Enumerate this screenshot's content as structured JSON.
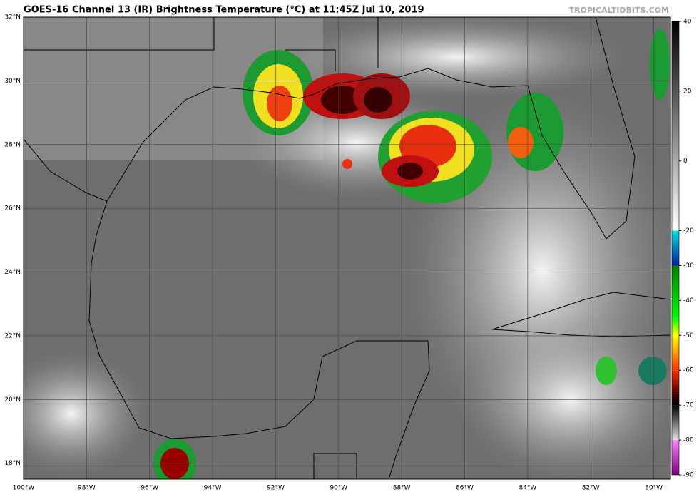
{
  "header": {
    "title": "GOES-16 Channel 13 (IR) Brightness Temperature (°C) at 11:45Z Jul 10, 2019",
    "credit": "TROPICALTIDBITS.COM"
  },
  "map": {
    "lon_range": [
      -100,
      -79.47
    ],
    "lat_range": [
      17.5,
      32
    ],
    "lon_ticks": [
      {
        "value": -100,
        "label": "100°W"
      },
      {
        "value": -98,
        "label": "98°W"
      },
      {
        "value": -96,
        "label": "96°W"
      },
      {
        "value": -94,
        "label": "94°W"
      },
      {
        "value": -92,
        "label": "92°W"
      },
      {
        "value": -90,
        "label": "90°W"
      },
      {
        "value": -88,
        "label": "88°W"
      },
      {
        "value": -86,
        "label": "86°W"
      },
      {
        "value": -84,
        "label": "84°W"
      },
      {
        "value": -82,
        "label": "82°W"
      },
      {
        "value": -80,
        "label": "80°W"
      }
    ],
    "lat_ticks": [
      {
        "value": 32,
        "label": "32°N"
      },
      {
        "value": 30,
        "label": "30°N"
      },
      {
        "value": 28,
        "label": "28°N"
      },
      {
        "value": 26,
        "label": "26°N"
      },
      {
        "value": 24,
        "label": "24°N"
      },
      {
        "value": 22,
        "label": "22°N"
      },
      {
        "value": 20,
        "label": "20°N"
      },
      {
        "value": 18,
        "label": "18°N"
      }
    ]
  },
  "colorbar": {
    "range": [
      -90,
      40
    ],
    "ticks": [
      40,
      20,
      0,
      -20,
      -30,
      -40,
      -50,
      -60,
      -70,
      -80,
      -90
    ],
    "stops": [
      {
        "value": 40,
        "color": "#000000"
      },
      {
        "value": -20,
        "color": "#ffffff"
      },
      {
        "value": -20.01,
        "color": "#00e0e0"
      },
      {
        "value": -30,
        "color": "#0020a0"
      },
      {
        "value": -30.01,
        "color": "#008000"
      },
      {
        "value": -45,
        "color": "#00ff00"
      },
      {
        "value": -50,
        "color": "#ffff00"
      },
      {
        "value": -60,
        "color": "#ff3000"
      },
      {
        "value": -66,
        "color": "#600000"
      },
      {
        "value": -70,
        "color": "#000000"
      },
      {
        "value": -80,
        "color": "#e0e0e0"
      },
      {
        "value": -80.01,
        "color": "#ff80ff"
      },
      {
        "value": -90,
        "color": "#800080"
      }
    ]
  }
}
